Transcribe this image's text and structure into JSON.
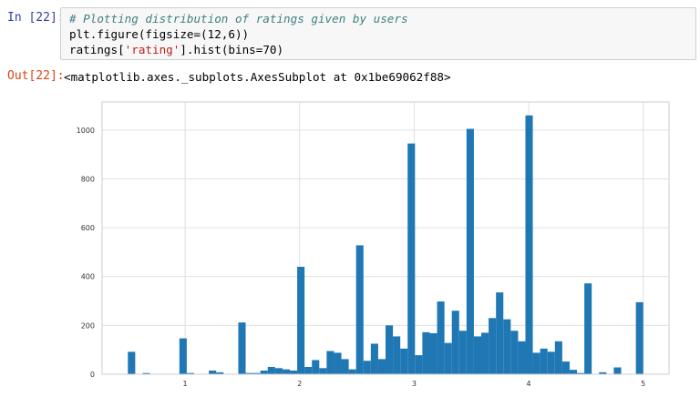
{
  "cell": {
    "in_prompt": "In [22]:",
    "code": {
      "comment": "# Plotting distribution of ratings given by users",
      "line2": "plt.figure(figsize=(12,6))",
      "line3_prefix": "ratings[",
      "line3_string": "'rating'",
      "line3_suffix": "].hist(bins=70)"
    },
    "out_prompt": "Out[22]:",
    "output_text": "<matplotlib.axes._subplots.AxesSubplot at 0x1be69062f88>"
  },
  "colors": {
    "bar": "#1f77b4",
    "grid": "#e0e0e0",
    "axes": "#cccccc"
  },
  "chart_data": {
    "type": "bar",
    "title": "",
    "xlabel": "",
    "ylabel": "",
    "grid": true,
    "xlim": [
      0.275,
      5.225
    ],
    "ylim": [
      0,
      1115
    ],
    "xticks": [
      "1",
      "2",
      "3",
      "4",
      "5"
    ],
    "yticks": [
      "0",
      "200",
      "400",
      "600",
      "800",
      "1000"
    ],
    "bin_start": 0.5,
    "bin_width": 0.0642857,
    "values": [
      92,
      0,
      5,
      0,
      0,
      0,
      0,
      147,
      5,
      0,
      0,
      15,
      8,
      0,
      0,
      212,
      5,
      5,
      15,
      30,
      25,
      20,
      15,
      440,
      30,
      58,
      25,
      95,
      88,
      62,
      20,
      528,
      55,
      125,
      62,
      200,
      155,
      105,
      945,
      78,
      172,
      168,
      298,
      128,
      260,
      178,
      1005,
      155,
      170,
      230,
      335,
      225,
      178,
      135,
      1060,
      88,
      105,
      92,
      135,
      52,
      18,
      5,
      372,
      0,
      8,
      0,
      28,
      0,
      0,
      295
    ]
  }
}
